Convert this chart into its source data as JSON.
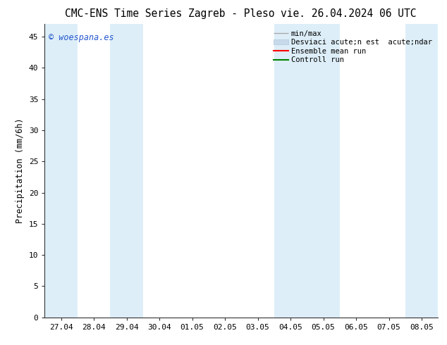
{
  "title_left": "CMC-ENS Time Series Zagreb - Pleso",
  "title_right": "vie. 26.04.2024 06 UTC",
  "ylabel": "Precipitation (mm/6h)",
  "watermark": "© woespana.es",
  "xtick_labels": [
    "27.04",
    "28.04",
    "29.04",
    "30.04",
    "01.05",
    "02.05",
    "03.05",
    "04.05",
    "05.05",
    "06.05",
    "07.05",
    "08.05"
  ],
  "xtick_positions": [
    0,
    1,
    2,
    3,
    4,
    5,
    6,
    7,
    8,
    9,
    10,
    11
  ],
  "ylim": [
    0,
    47
  ],
  "yticks": [
    0,
    5,
    10,
    15,
    20,
    25,
    30,
    35,
    40,
    45
  ],
  "shaded_bands": [
    {
      "xstart": -0.5,
      "xend": 0.5,
      "color": "#ddeef8"
    },
    {
      "xstart": 1.5,
      "xend": 2.5,
      "color": "#ddeef8"
    },
    {
      "xstart": 6.5,
      "xend": 7.5,
      "color": "#ddeef8"
    },
    {
      "xstart": 7.5,
      "xend": 8.5,
      "color": "#ddeef8"
    },
    {
      "xstart": 10.5,
      "xend": 11.5,
      "color": "#ddeef8"
    }
  ],
  "legend_entries": [
    {
      "label": "min/max",
      "color": "#aaaaaa",
      "lw": 1.0
    },
    {
      "label": "Desviaci acute;n est  acute;ndar",
      "color": "#c8daea",
      "lw": 6
    },
    {
      "label": "Ensemble mean run",
      "color": "red",
      "lw": 1.5
    },
    {
      "label": "Controll run",
      "color": "green",
      "lw": 1.5
    }
  ],
  "bg_color": "#ffffff",
  "plot_bg_color": "#ffffff",
  "font_size_title": 10.5,
  "font_size_axis": 8.5,
  "font_size_tick": 8,
  "font_size_legend": 7.5,
  "font_size_watermark": 8.5,
  "shaded_band_color": "#ddeef8"
}
